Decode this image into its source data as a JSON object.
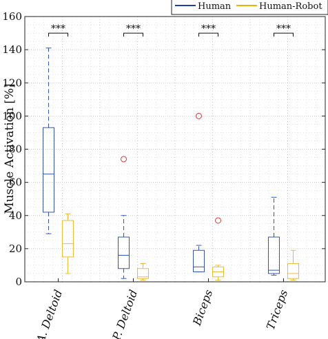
{
  "chart_data": {
    "type": "box",
    "title": "",
    "xlabel": "",
    "ylabel": "Muscle Activation [%]",
    "ylim": [
      0,
      160
    ],
    "yticks": [
      0,
      20,
      40,
      60,
      80,
      100,
      120,
      140,
      160
    ],
    "grid": "on (dotted, major and minor)",
    "legend_placement": "top-right, outside above plot",
    "categories": [
      "A. Deltoid",
      "P. Deltoid",
      "Biceps",
      "Triceps"
    ],
    "significance": [
      "***",
      "***",
      "***",
      "***"
    ],
    "series": [
      {
        "name": "Human",
        "color": "#3355bb",
        "line_style": "dashed whiskers",
        "boxes": [
          {
            "q1": 42,
            "median": 65,
            "q3": 93,
            "whisker_low": 29,
            "whisker_high": 141,
            "outliers": []
          },
          {
            "q1": 8,
            "median": 16,
            "q3": 27,
            "whisker_low": 2,
            "whisker_high": 40,
            "outliers": [
              74
            ]
          },
          {
            "q1": 6,
            "median": 9,
            "q3": 19,
            "whisker_low": 6,
            "whisker_high": 22,
            "outliers": [
              100
            ]
          },
          {
            "q1": 5,
            "median": 7,
            "q3": 27,
            "whisker_low": 4,
            "whisker_high": 51,
            "outliers": []
          }
        ]
      },
      {
        "name": "Human-Robot",
        "color": "#f2b833",
        "line_style": "solid whiskers",
        "boxes": [
          {
            "q1": 15,
            "median": 23,
            "q3": 37,
            "whisker_low": 5,
            "whisker_high": 41,
            "outliers": []
          },
          {
            "q1": 2,
            "median": 3,
            "q3": 8,
            "whisker_low": 1,
            "whisker_high": 11,
            "outliers": []
          },
          {
            "q1": 3,
            "median": 6,
            "q3": 9,
            "whisker_low": 1,
            "whisker_high": 10,
            "outliers": [
              37
            ]
          },
          {
            "q1": 2,
            "median": 5,
            "q3": 11,
            "whisker_low": 1,
            "whisker_high": 19,
            "outliers": []
          }
        ]
      }
    ],
    "outlier_color": "#dd3333"
  }
}
